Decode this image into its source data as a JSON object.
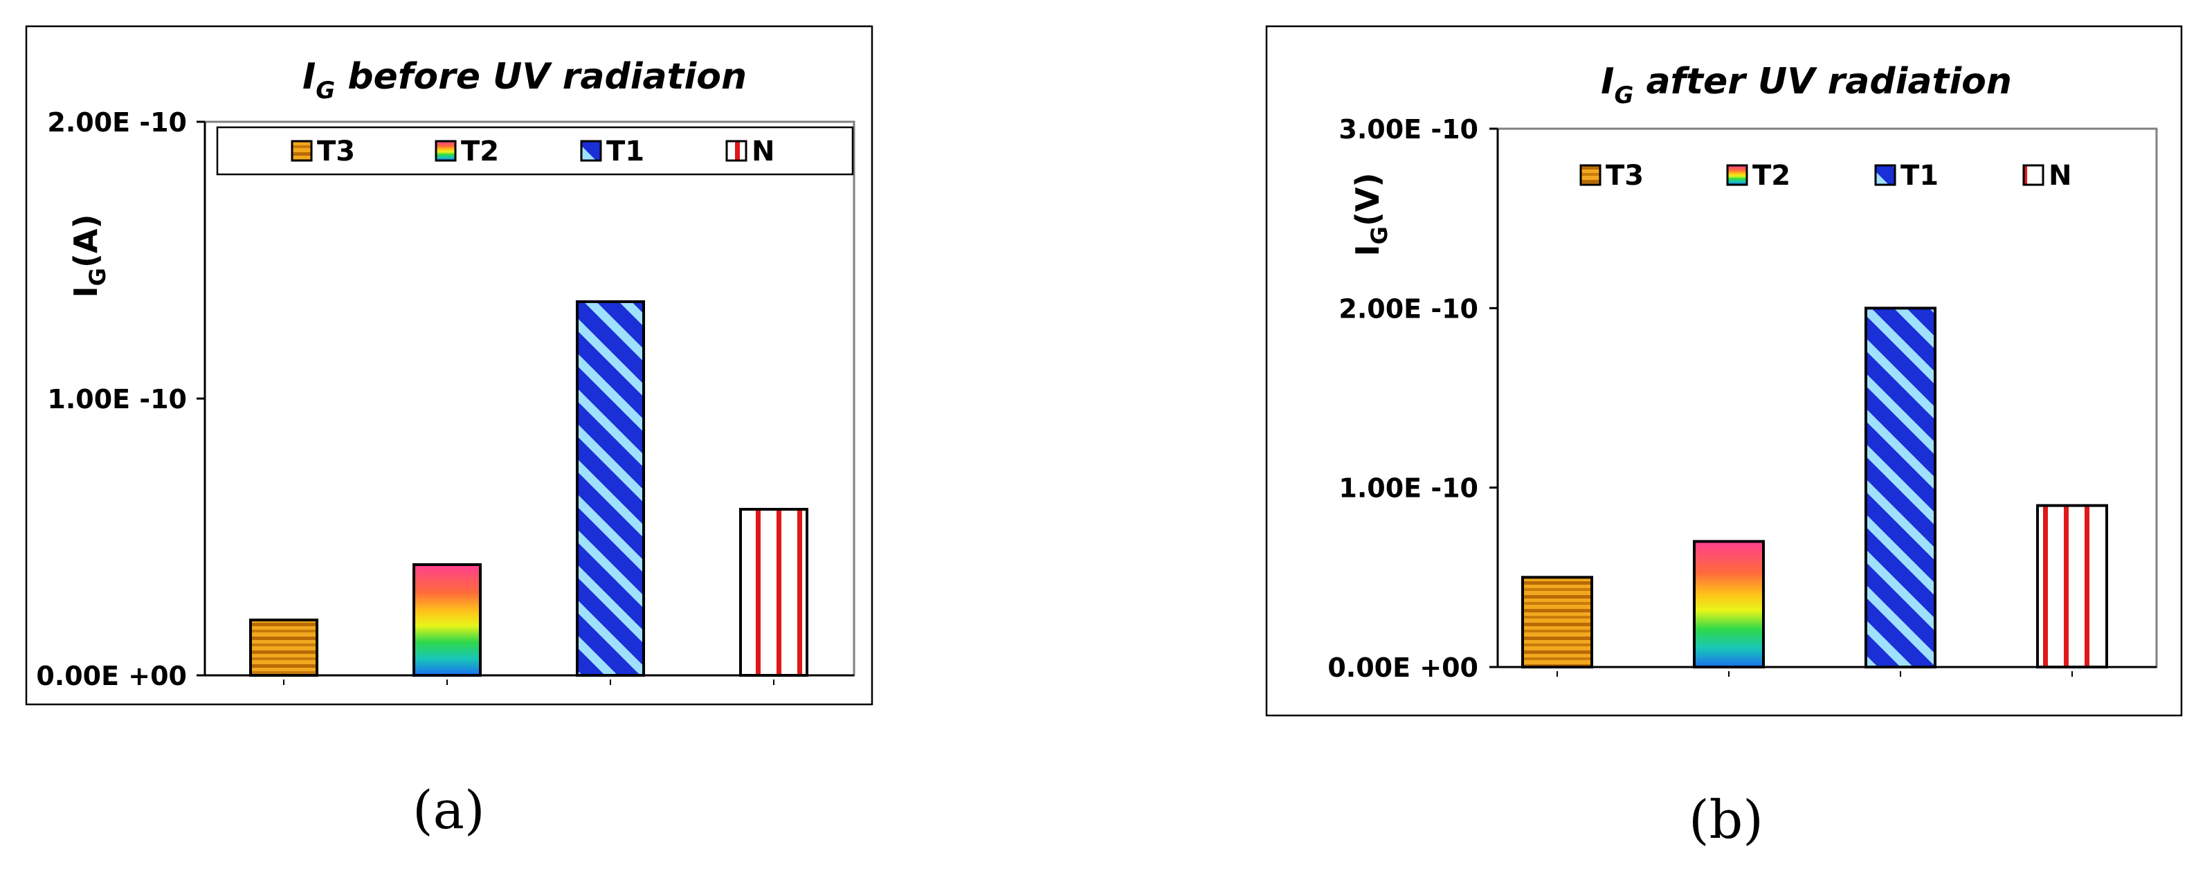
{
  "figure": {
    "caption_a": "(a)",
    "caption_b": "(b)"
  },
  "colors": {
    "T3": "#d98a12",
    "T2": "rainbow",
    "T1": "#1a2fd6",
    "N": "#e01818",
    "frame": "#000000",
    "plot_border": "#808080"
  },
  "chart_data": [
    {
      "type": "bar",
      "title_main": "I",
      "title_sub": "G",
      "title_rest": " before UV radiation",
      "ylabel_main": "I",
      "ylabel_sub": "G",
      "ylabel_rest": "(A)",
      "ylim": [
        0,
        2e-10
      ],
      "yticks": [
        0,
        1e-10,
        2e-10
      ],
      "ytick_labels": [
        "0.00E +00",
        "1.00E -10",
        "2.00E -10"
      ],
      "legend_position": "top (boxed)",
      "grid": false,
      "series": [
        {
          "name": "T3",
          "values": [
            2e-11
          ]
        },
        {
          "name": "T2",
          "values": [
            4e-11
          ]
        },
        {
          "name": "T1",
          "values": [
            1.35e-10
          ]
        },
        {
          "name": "N",
          "values": [
            6e-11
          ]
        }
      ]
    },
    {
      "type": "bar",
      "title_main": "I",
      "title_sub": "G",
      "title_rest": " after UV radiation",
      "ylabel_main": "I",
      "ylabel_sub": "G",
      "ylabel_rest": "(V)",
      "ylim": [
        0,
        3e-10
      ],
      "yticks": [
        0,
        1e-10,
        2e-10,
        3e-10
      ],
      "ytick_labels": [
        "0.00E +00",
        "1.00E -10",
        "2.00E -10",
        "3.00E -10"
      ],
      "legend_position": "top (no box)",
      "grid": false,
      "series": [
        {
          "name": "T3",
          "values": [
            5e-11
          ]
        },
        {
          "name": "T2",
          "values": [
            7e-11
          ]
        },
        {
          "name": "T1",
          "values": [
            2e-10
          ]
        },
        {
          "name": "N",
          "values": [
            9e-11
          ]
        }
      ]
    }
  ]
}
